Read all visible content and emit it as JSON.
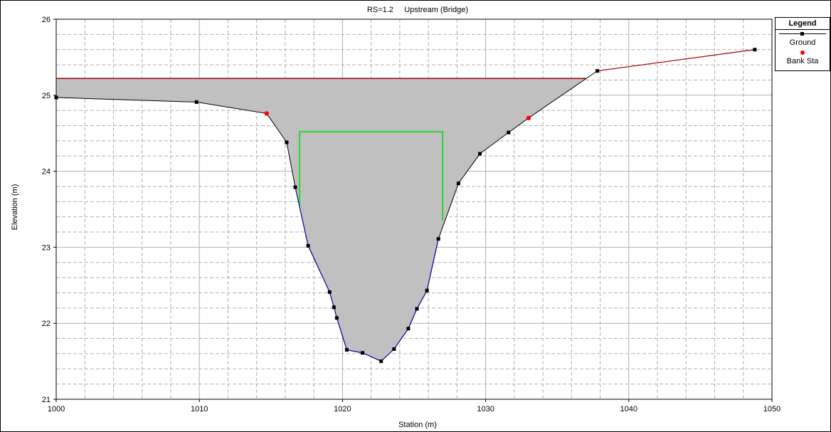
{
  "chart_data": {
    "type": "line",
    "title": "RS=1.2     Upstream (Bridge)",
    "xlabel": "Station (m)",
    "ylabel": "Elevation (m)",
    "xlim": [
      1000,
      1050
    ],
    "ylim": [
      21,
      26
    ],
    "xticks": [
      "1000",
      "1010",
      "1020",
      "1030",
      "1040",
      "1050"
    ],
    "yticks": [
      "21",
      "22",
      "23",
      "24",
      "25",
      "26"
    ],
    "grid": true,
    "legend_position": "top-right",
    "legend_title": "Legend",
    "series": [
      {
        "name": "Ground",
        "x": [
          1000.0,
          1009.8,
          1014.7,
          1016.1,
          1016.7,
          1017.6,
          1019.1,
          1019.4,
          1019.6,
          1020.3,
          1021.4,
          1022.7,
          1023.6,
          1024.6,
          1025.2,
          1025.9,
          1026.7,
          1028.1,
          1029.6,
          1031.6,
          1033.0,
          1037.8,
          1048.8
        ],
        "y": [
          24.97,
          24.91,
          24.76,
          24.38,
          23.79,
          23.02,
          22.41,
          22.21,
          22.07,
          21.65,
          21.61,
          21.5,
          21.66,
          21.93,
          22.19,
          22.43,
          23.11,
          23.84,
          24.23,
          24.51,
          24.7,
          25.32,
          25.6
        ]
      },
      {
        "name": "Bank Sta",
        "x": [
          1014.7,
          1033.0
        ],
        "y": [
          24.76,
          24.7
        ]
      }
    ],
    "water_surface": 25.22,
    "bridge_deck": {
      "left": 1017.0,
      "right": 1027.0,
      "low_chord": 24.52,
      "left_bottom": 23.55,
      "right_bottom": 23.35
    },
    "colors": {
      "ground": "#000000",
      "bank_sta": "#ff0000",
      "water_fill": "#c0c0c0",
      "water_line": "#a00000",
      "bridge": "#00dd00",
      "channel": "#0000a0",
      "grid": "#b0b0b0"
    }
  }
}
